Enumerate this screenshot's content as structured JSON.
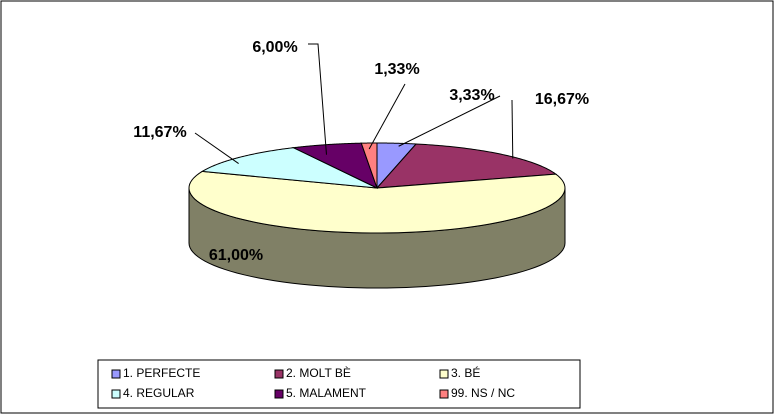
{
  "chart_data": {
    "type": "pie",
    "categories": [
      "1. PERFECTE",
      "2. MOLT BÈ",
      "3. BÉ",
      "4. REGULAR",
      "5. MALAMENT",
      "99. NS / NC"
    ],
    "values": [
      3.33,
      16.67,
      61.0,
      11.67,
      6.0,
      1.33
    ],
    "value_labels": [
      "3,33%",
      "16,67%",
      "61,00%",
      "11,67%",
      "6,00%",
      "1,33%"
    ],
    "colors": [
      "#9999ff",
      "#993366",
      "#ffffcc",
      "#ccffff",
      "#660066",
      "#ff8080"
    ],
    "legend": "bottom"
  }
}
